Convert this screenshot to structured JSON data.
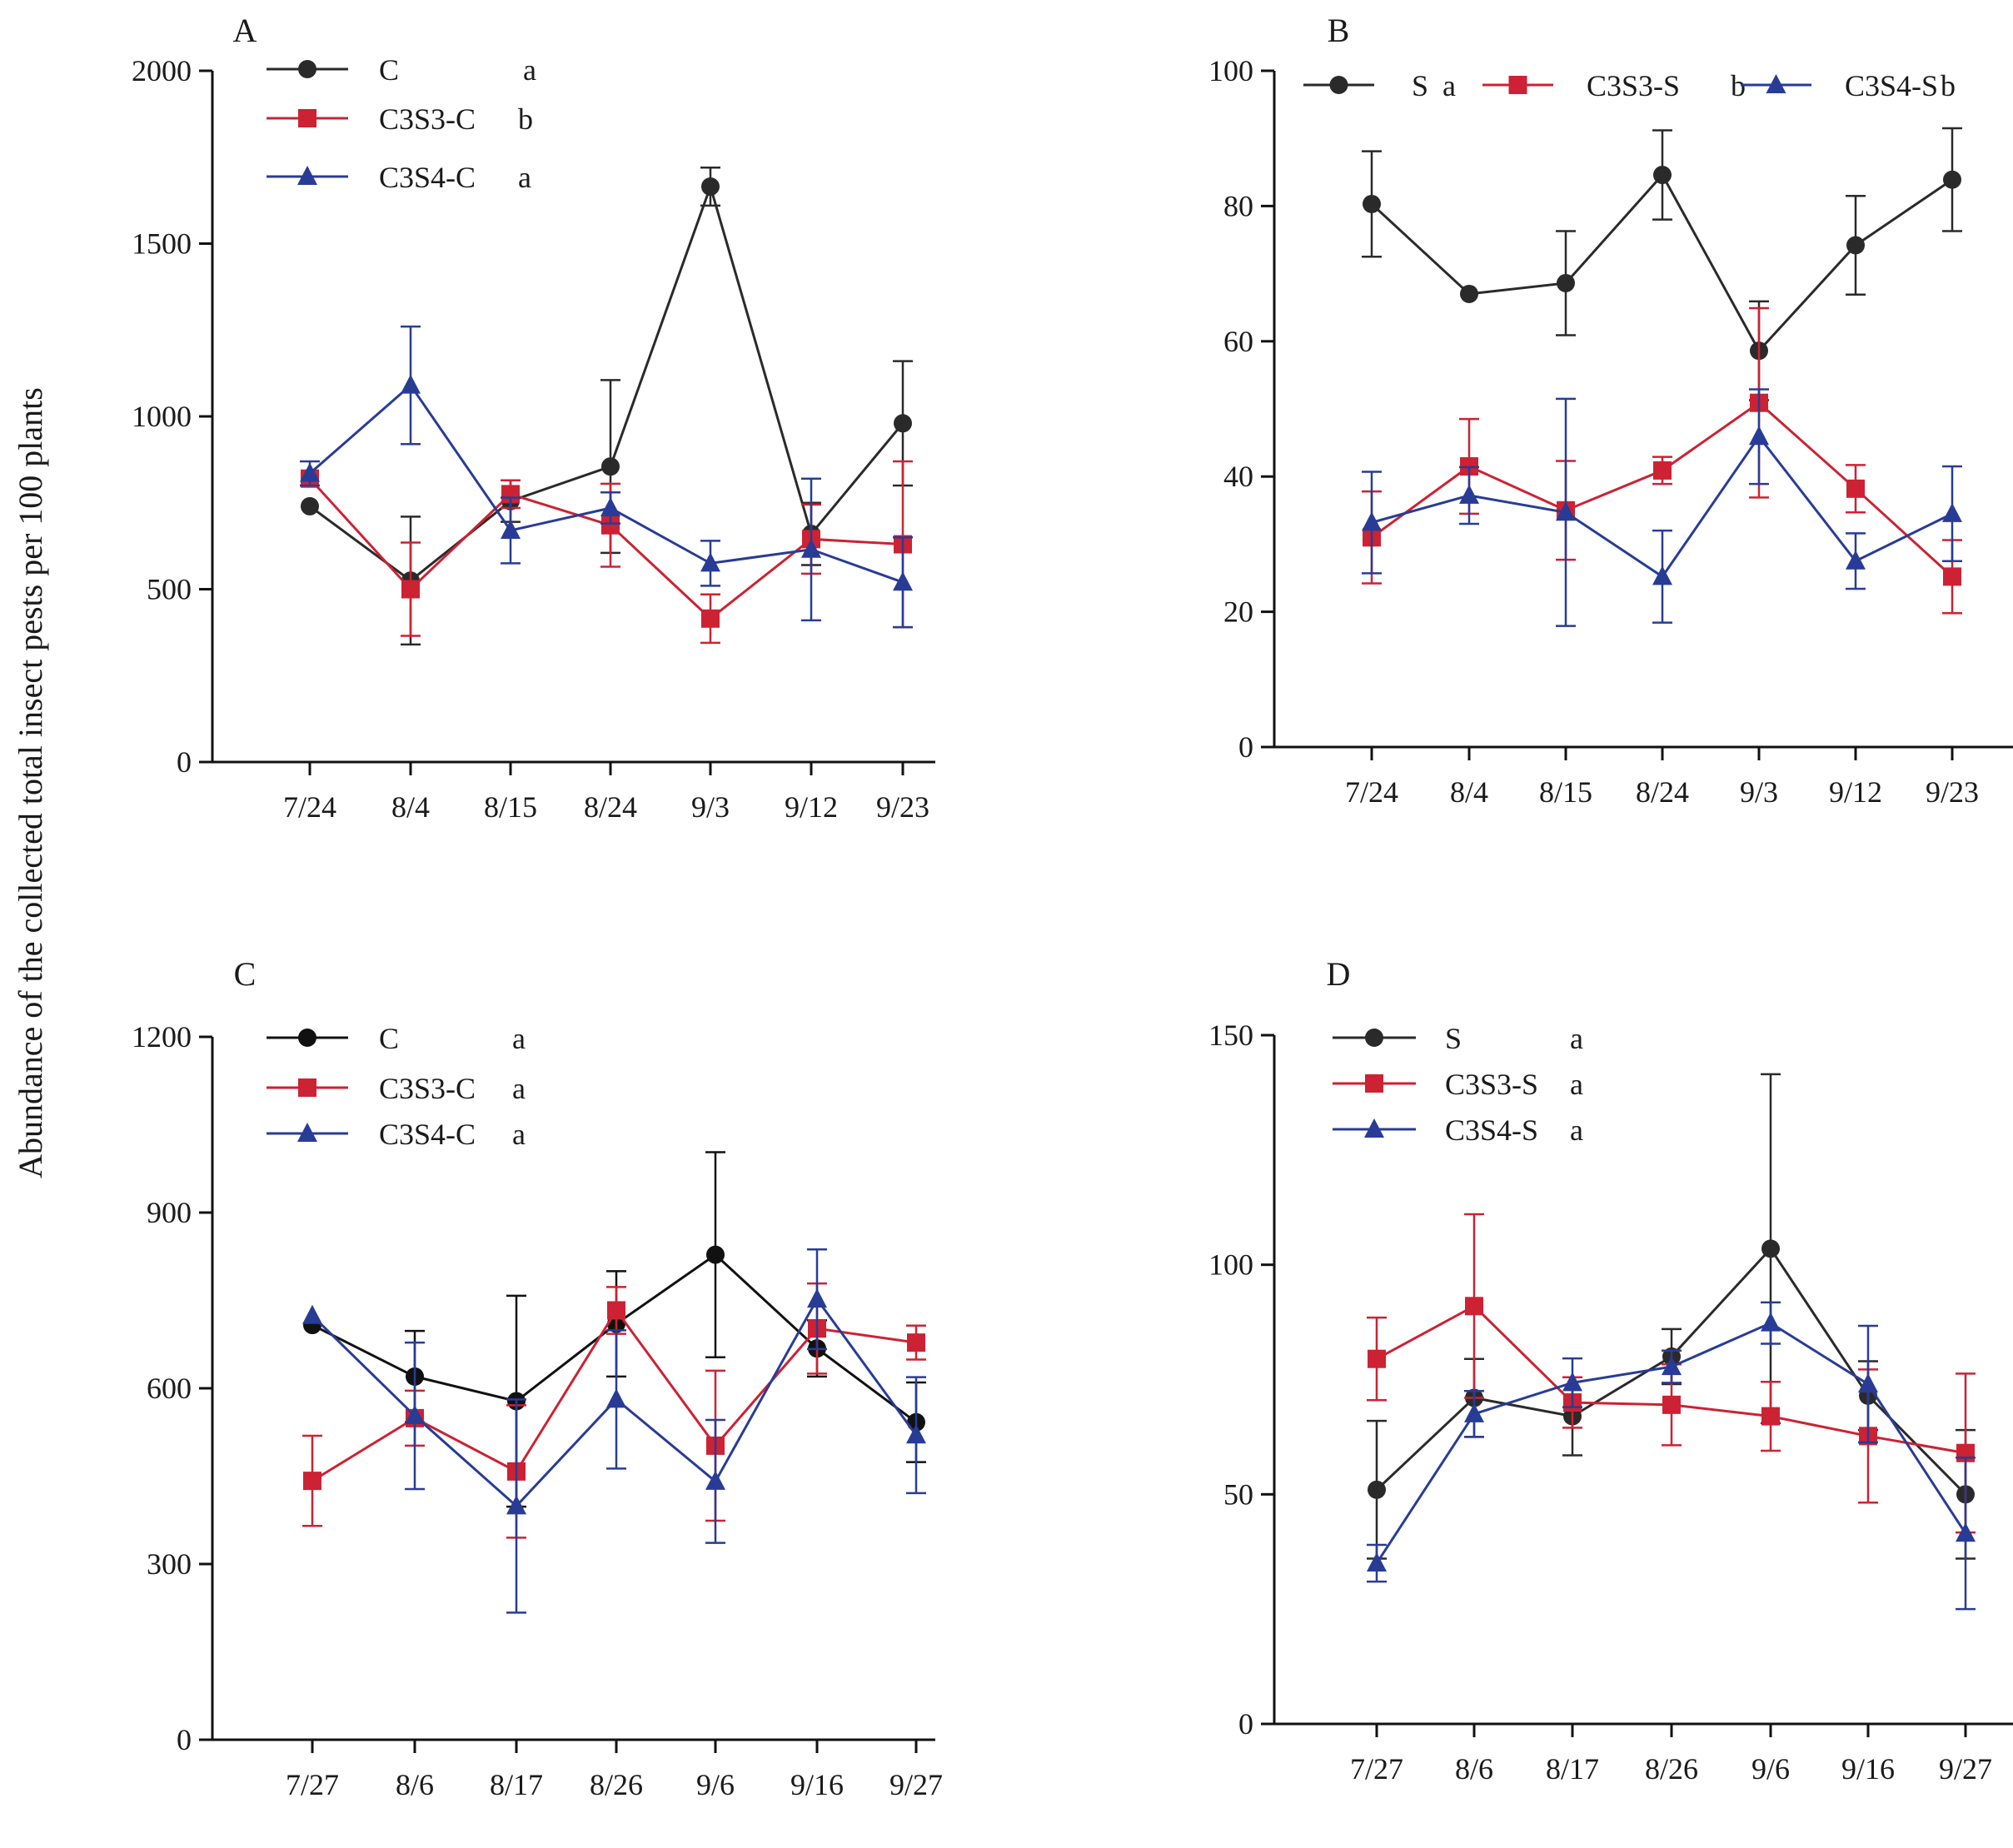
{
  "figure": {
    "ylabel": "Abundance of  the collected total insect pests  per 100 plants",
    "colors": {
      "s1": "#2a2a2a",
      "s2": "#cc2233",
      "s3": "#283c96",
      "axis": "#111111"
    }
  },
  "chart_data": [
    {
      "id": "A",
      "type": "line",
      "panel_label": "A",
      "categories": [
        "7/24",
        "8/4",
        "8/15",
        "8/24",
        "9/3",
        "9/12",
        "9/23"
      ],
      "ylim": [
        0,
        2000
      ],
      "yticks": [
        0,
        500,
        1000,
        1500,
        2000
      ],
      "ytick_labels": [
        "0",
        "500",
        "1000",
        "1500",
        "2000"
      ],
      "legend_layout": "vertical",
      "series": [
        {
          "name": "C",
          "sig": "a",
          "marker": "circle",
          "color": "#2a2a2a",
          "values": [
            740,
            525,
            755,
            855,
            1665,
            660,
            980
          ],
          "errors": [
            0,
            185,
            60,
            250,
            55,
            90,
            180
          ]
        },
        {
          "name": "C3S3-C",
          "sig": "b",
          "marker": "square",
          "color": "#cc2233",
          "values": [
            820,
            500,
            775,
            685,
            415,
            645,
            630
          ],
          "errors": [
            0,
            135,
            40,
            120,
            70,
            100,
            240
          ]
        },
        {
          "name": "C3S4-C",
          "sig": "a",
          "marker": "triangle",
          "color": "#283c96",
          "values": [
            835,
            1090,
            670,
            735,
            575,
            615,
            520
          ],
          "errors": [
            35,
            170,
            95,
            45,
            65,
            205,
            130
          ]
        }
      ]
    },
    {
      "id": "B",
      "type": "line",
      "panel_label": "B",
      "categories": [
        "7/24",
        "8/4",
        "8/15",
        "8/24",
        "9/3",
        "9/12",
        "9/23"
      ],
      "ylim": [
        0,
        100
      ],
      "yticks": [
        0,
        20,
        40,
        60,
        80,
        100
      ],
      "ytick_labels": [
        "0",
        "20",
        "40",
        "60",
        "80",
        "100"
      ],
      "legend_layout": "horizontal",
      "series": [
        {
          "name": "S",
          "sig": "a",
          "marker": "circle",
          "color": "#2a2a2a",
          "values": [
            80.3,
            67,
            68.6,
            84.6,
            58.6,
            74.2,
            83.9
          ],
          "errors": [
            7.8,
            0,
            7.7,
            6.6,
            7.3,
            7.3,
            7.6
          ]
        },
        {
          "name": "C3S3-S",
          "sig": "b",
          "marker": "square",
          "color": "#cc2233",
          "values": [
            31,
            41.5,
            35,
            40.9,
            50.9,
            38.2,
            25.2
          ],
          "errors": [
            6.8,
            7.0,
            7.3,
            2.0,
            14.0,
            3.5,
            5.4
          ]
        },
        {
          "name": "C3S4-S",
          "sig": "b",
          "marker": "triangle",
          "color": "#283c96",
          "values": [
            33.2,
            37.2,
            34.7,
            25.2,
            45.9,
            27.5,
            34.5
          ],
          "errors": [
            7.5,
            4.2,
            16.8,
            6.8,
            7.0,
            4.1,
            7.0
          ]
        }
      ]
    },
    {
      "id": "C",
      "type": "line",
      "panel_label": "C",
      "categories": [
        "7/27",
        "8/6",
        "8/17",
        "8/26",
        "9/6",
        "9/16",
        "9/27"
      ],
      "ylim": [
        0,
        1200
      ],
      "yticks": [
        0,
        300,
        600,
        900,
        1200
      ],
      "ytick_labels": [
        "0",
        "300",
        "600",
        "900",
        "1200"
      ],
      "legend_layout": "vertical",
      "series": [
        {
          "name": "C",
          "sig": "a",
          "marker": "circle",
          "color": "#111111",
          "values": [
            708,
            620,
            578,
            710,
            828,
            668,
            542
          ],
          "errors": [
            0,
            78,
            180,
            90,
            175,
            48,
            68
          ]
        },
        {
          "name": "C3S3-C",
          "sig": "a",
          "marker": "square",
          "color": "#cc2233",
          "values": [
            442,
            549,
            458,
            733,
            502,
            702,
            678
          ],
          "errors": [
            77,
            47,
            113,
            40,
            128,
            77,
            29
          ]
        },
        {
          "name": "C3S4-C",
          "sig": "a",
          "marker": "triangle",
          "color": "#283c96",
          "values": [
            724,
            553,
            399,
            581,
            441,
            752,
            520
          ],
          "errors": [
            0,
            125,
            182,
            118,
            105,
            85,
            99
          ]
        }
      ]
    },
    {
      "id": "D",
      "type": "line",
      "panel_label": "D",
      "categories": [
        "7/27",
        "8/6",
        "8/17",
        "8/26",
        "9/6",
        "9/16",
        "9/27"
      ],
      "ylim": [
        0,
        150
      ],
      "yticks": [
        0,
        50,
        100,
        150
      ],
      "ytick_labels": [
        "0",
        "50",
        "100",
        "150"
      ],
      "legend_layout": "vertical",
      "series": [
        {
          "name": "S",
          "sig": "a",
          "marker": "circle",
          "color": "#2a2a2a",
          "values": [
            51,
            71,
            67,
            80,
            103.5,
            71.5,
            50
          ],
          "errors": [
            15,
            8.5,
            8.5,
            6,
            38,
            7.5,
            14
          ]
        },
        {
          "name": "C3S3-S",
          "sig": "a",
          "marker": "square",
          "color": "#cc2233",
          "values": [
            79.5,
            91,
            70,
            69.5,
            67,
            62.7,
            59
          ],
          "errors": [
            9,
            20,
            5.5,
            8.8,
            7.5,
            14.5,
            17.3
          ]
        },
        {
          "name": "C3S4-S",
          "sig": "a",
          "marker": "triangle",
          "color": "#283c96",
          "values": [
            35,
            67.5,
            74.3,
            77.8,
            87.3,
            74,
            41.5
          ],
          "errors": [
            4,
            5,
            5.3,
            3.5,
            4.5,
            12.7,
            16.5
          ]
        }
      ]
    }
  ]
}
